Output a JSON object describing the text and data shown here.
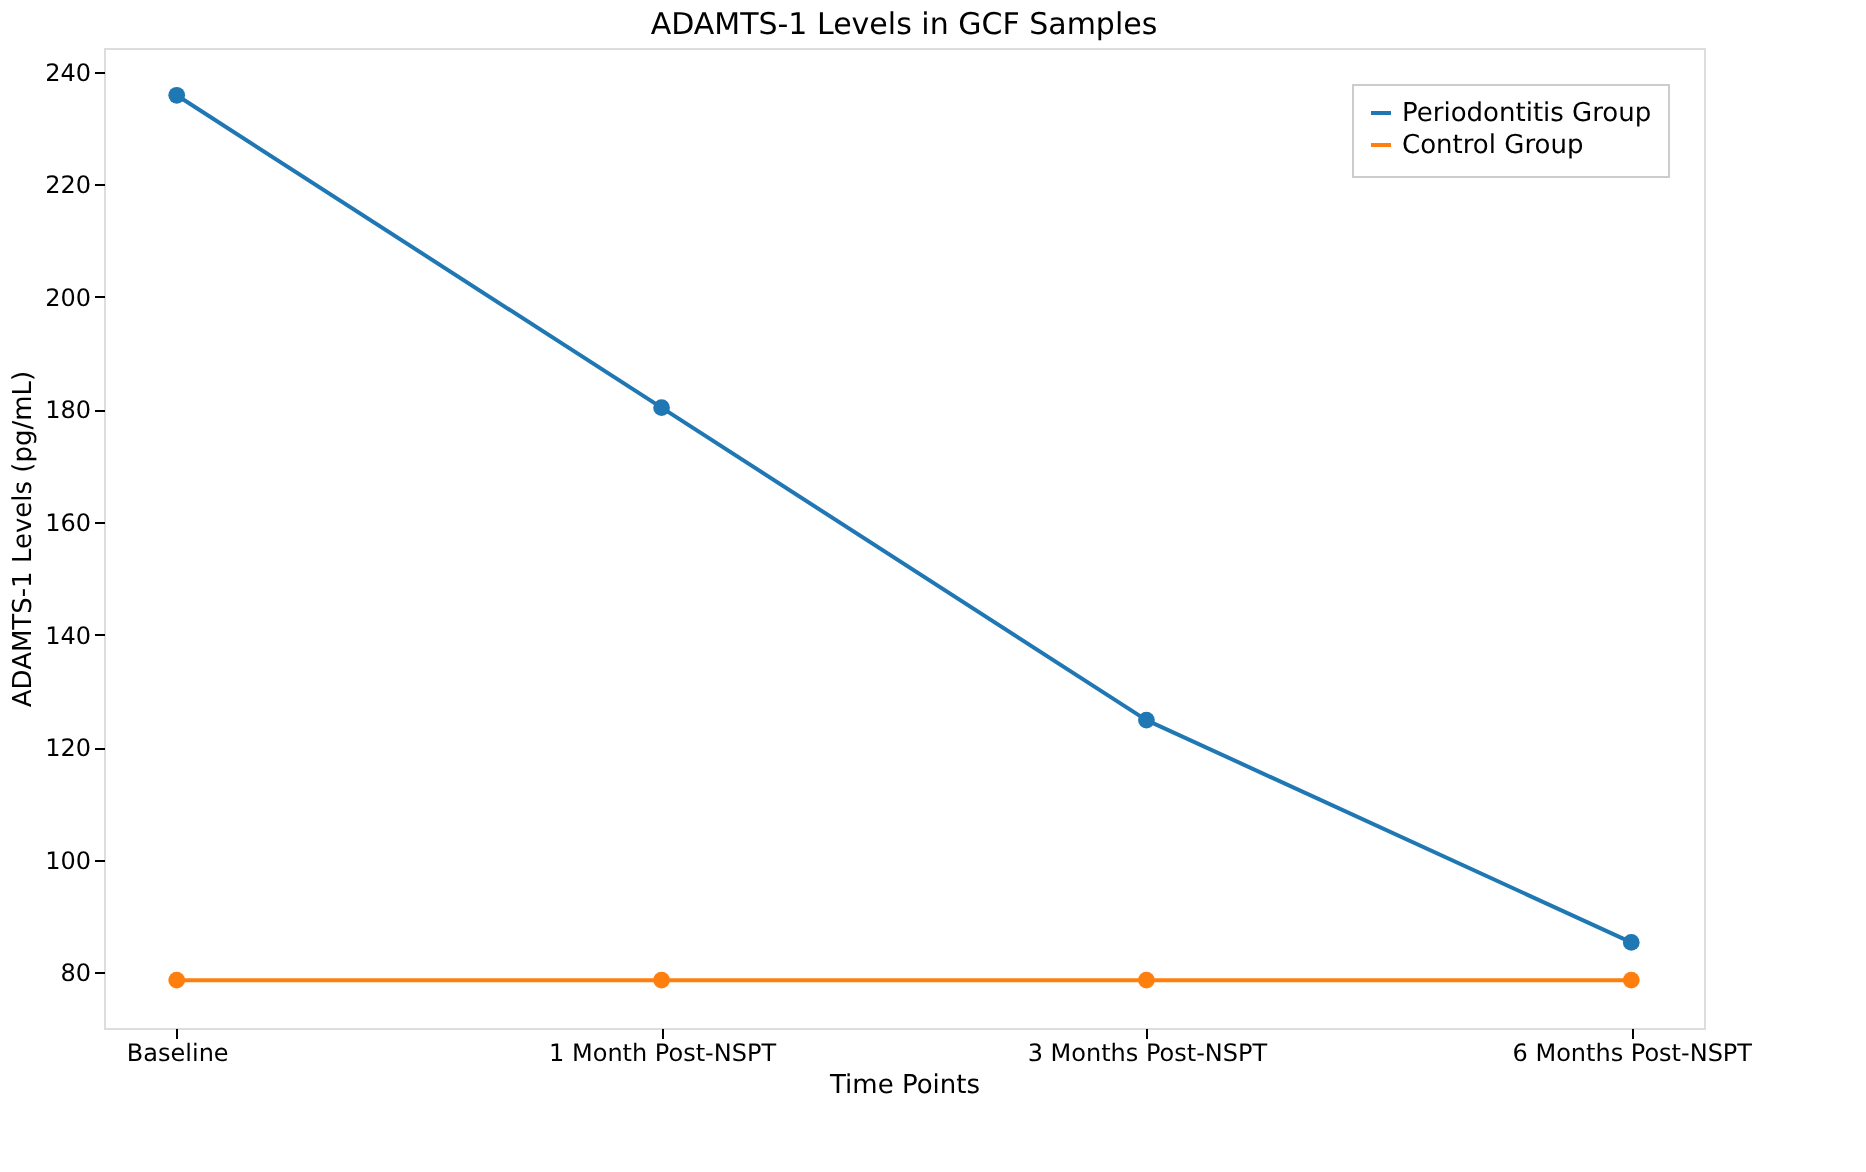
{
  "chart_data": {
    "type": "line",
    "title": "ADAMTS-1 Levels in GCF Samples",
    "xlabel": "Time Points",
    "ylabel": "ADAMTS-1 Levels (pg/mL)",
    "categories": [
      "Baseline",
      "1 Month Post-NSPT",
      "3 Months Post-NSPT",
      "6 Months Post-NSPT"
    ],
    "series": [
      {
        "name": "Periodontitis Group",
        "color": "#1f77b4",
        "values": [
          235.8,
          180.3,
          124.8,
          85.3
        ]
      },
      {
        "name": "Control Group",
        "color": "#ff7f0e",
        "values": [
          78.6,
          78.6,
          78.6,
          78.6
        ]
      }
    ],
    "ylim": [
      70.1,
      244.2
    ],
    "yticks": [
      80,
      100,
      120,
      140,
      160,
      180,
      200,
      220,
      240
    ],
    "legend": "top right",
    "grid": false,
    "marker": "circle",
    "line_style": "solid"
  }
}
